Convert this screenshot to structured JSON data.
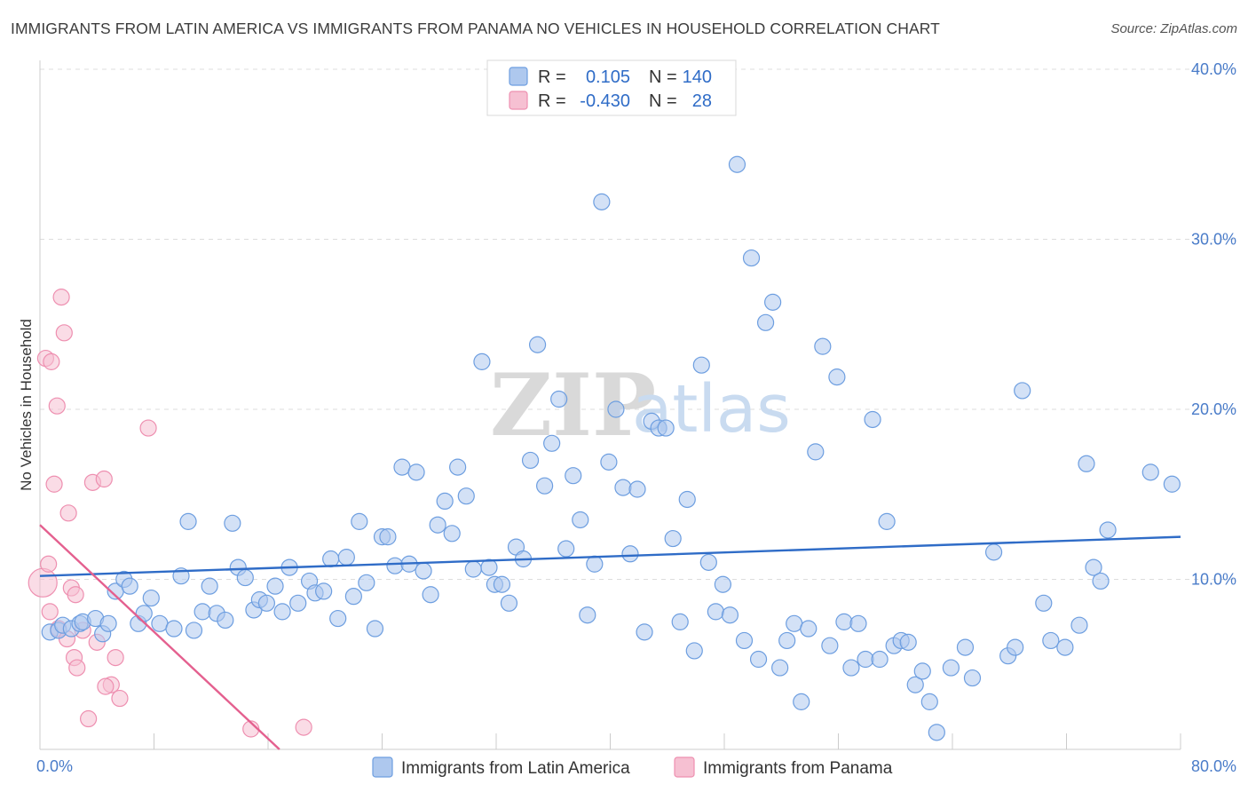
{
  "title": "IMMIGRANTS FROM LATIN AMERICA VS IMMIGRANTS FROM PANAMA NO VEHICLES IN HOUSEHOLD CORRELATION CHART",
  "source": "Source: ZipAtlas.com",
  "watermark": {
    "zip": "ZIP",
    "atlas": "atlas"
  },
  "colors": {
    "blue_fill": "#aec8ee",
    "blue_stroke": "#6d9ee0",
    "blue_line": "#2f6cc7",
    "pink_fill": "#f6c0d2",
    "pink_stroke": "#ee8fb0",
    "pink_line": "#e4608f",
    "grid": "#dddddd",
    "tick_text": "#4a7cc9"
  },
  "legend": {
    "rows": [
      {
        "r_label": "R = ",
        "r_value": "0.105",
        "n_label": "N = ",
        "n_value": "140",
        "color": "blue"
      },
      {
        "r_label": "R = ",
        "r_value": "-0.430",
        "n_label": "N = ",
        "n_value": "28",
        "color": "pink"
      }
    ]
  },
  "chart_data": {
    "type": "scatter",
    "title": "IMMIGRANTS FROM LATIN AMERICA VS IMMIGRANTS FROM PANAMA NO VEHICLES IN HOUSEHOLD CORRELATION CHART",
    "xlabel": "",
    "ylabel": "No Vehicles in Household",
    "xlim": [
      0,
      80
    ],
    "ylim": [
      0,
      40
    ],
    "x_tick_labels": [
      "0.0%",
      "80.0%"
    ],
    "y_ticks": [
      10,
      20,
      30,
      40
    ],
    "y_tick_labels": [
      "10.0%",
      "20.0%",
      "30.0%",
      "40.0%"
    ],
    "grid": true,
    "legend_placement": "top-center",
    "series": [
      {
        "name": "Immigrants from Latin America",
        "color": "blue",
        "r": 0.105,
        "n": 140,
        "trend": {
          "x": [
            0,
            80
          ],
          "y": [
            10.2,
            12.5
          ]
        },
        "points": [
          [
            0.7,
            6.9
          ],
          [
            1.3,
            7.0
          ],
          [
            1.6,
            7.3
          ],
          [
            2.2,
            7.1
          ],
          [
            2.8,
            7.4
          ],
          [
            3.0,
            7.5
          ],
          [
            3.9,
            7.7
          ],
          [
            4.4,
            6.8
          ],
          [
            4.8,
            7.4
          ],
          [
            5.3,
            9.3
          ],
          [
            5.9,
            10.0
          ],
          [
            6.3,
            9.6
          ],
          [
            6.9,
            7.4
          ],
          [
            7.3,
            8.0
          ],
          [
            7.8,
            8.9
          ],
          [
            8.4,
            7.4
          ],
          [
            9.4,
            7.1
          ],
          [
            9.9,
            10.2
          ],
          [
            10.4,
            13.4
          ],
          [
            10.8,
            7.0
          ],
          [
            11.4,
            8.1
          ],
          [
            11.9,
            9.6
          ],
          [
            12.4,
            8.0
          ],
          [
            13.0,
            7.6
          ],
          [
            13.5,
            13.3
          ],
          [
            13.9,
            10.7
          ],
          [
            14.4,
            10.1
          ],
          [
            15.0,
            8.2
          ],
          [
            15.4,
            8.8
          ],
          [
            15.9,
            8.6
          ],
          [
            16.5,
            9.6
          ],
          [
            17.0,
            8.1
          ],
          [
            17.5,
            10.7
          ],
          [
            18.1,
            8.6
          ],
          [
            18.9,
            9.9
          ],
          [
            19.3,
            9.2
          ],
          [
            19.9,
            9.3
          ],
          [
            20.4,
            11.2
          ],
          [
            20.9,
            7.7
          ],
          [
            21.5,
            11.3
          ],
          [
            22.0,
            9.0
          ],
          [
            22.4,
            13.4
          ],
          [
            22.9,
            9.8
          ],
          [
            23.5,
            7.1
          ],
          [
            24.0,
            12.5
          ],
          [
            24.4,
            12.5
          ],
          [
            24.9,
            10.8
          ],
          [
            25.4,
            16.6
          ],
          [
            25.9,
            10.9
          ],
          [
            26.4,
            16.3
          ],
          [
            26.9,
            10.5
          ],
          [
            27.4,
            9.1
          ],
          [
            27.9,
            13.2
          ],
          [
            28.4,
            14.6
          ],
          [
            28.9,
            12.7
          ],
          [
            29.3,
            16.6
          ],
          [
            29.9,
            14.9
          ],
          [
            30.4,
            10.6
          ],
          [
            31.0,
            22.8
          ],
          [
            31.5,
            10.7
          ],
          [
            31.9,
            9.7
          ],
          [
            32.4,
            9.7
          ],
          [
            32.9,
            8.6
          ],
          [
            33.4,
            11.9
          ],
          [
            33.9,
            11.2
          ],
          [
            34.4,
            17.0
          ],
          [
            34.9,
            23.8
          ],
          [
            35.4,
            15.5
          ],
          [
            35.9,
            18.0
          ],
          [
            36.4,
            20.6
          ],
          [
            36.9,
            11.8
          ],
          [
            37.4,
            16.1
          ],
          [
            37.9,
            13.5
          ],
          [
            38.4,
            7.9
          ],
          [
            38.9,
            10.9
          ],
          [
            39.4,
            32.2
          ],
          [
            39.9,
            16.9
          ],
          [
            40.4,
            20.0
          ],
          [
            40.9,
            15.4
          ],
          [
            41.4,
            11.5
          ],
          [
            41.9,
            15.3
          ],
          [
            42.4,
            6.9
          ],
          [
            42.9,
            19.3
          ],
          [
            43.4,
            18.9
          ],
          [
            43.9,
            18.9
          ],
          [
            44.4,
            12.4
          ],
          [
            44.9,
            7.5
          ],
          [
            45.4,
            14.7
          ],
          [
            45.9,
            5.8
          ],
          [
            46.4,
            22.6
          ],
          [
            46.9,
            11.0
          ],
          [
            47.4,
            8.1
          ],
          [
            47.9,
            9.7
          ],
          [
            48.4,
            7.9
          ],
          [
            48.9,
            34.4
          ],
          [
            49.4,
            6.4
          ],
          [
            49.9,
            28.9
          ],
          [
            50.4,
            5.3
          ],
          [
            50.9,
            25.1
          ],
          [
            51.4,
            26.3
          ],
          [
            51.9,
            4.8
          ],
          [
            52.4,
            6.4
          ],
          [
            52.9,
            7.4
          ],
          [
            53.4,
            2.8
          ],
          [
            53.9,
            7.1
          ],
          [
            54.4,
            17.5
          ],
          [
            54.9,
            23.7
          ],
          [
            55.4,
            6.1
          ],
          [
            55.9,
            21.9
          ],
          [
            56.4,
            7.5
          ],
          [
            56.9,
            4.8
          ],
          [
            57.4,
            7.4
          ],
          [
            57.9,
            5.3
          ],
          [
            58.4,
            19.4
          ],
          [
            58.9,
            5.3
          ],
          [
            59.4,
            13.4
          ],
          [
            59.9,
            6.1
          ],
          [
            60.4,
            6.4
          ],
          [
            60.9,
            6.3
          ],
          [
            61.4,
            3.8
          ],
          [
            61.9,
            4.6
          ],
          [
            62.4,
            2.8
          ],
          [
            62.9,
            1.0
          ],
          [
            63.9,
            4.8
          ],
          [
            64.9,
            6.0
          ],
          [
            65.4,
            4.2
          ],
          [
            66.9,
            11.6
          ],
          [
            67.9,
            5.5
          ],
          [
            68.4,
            6.0
          ],
          [
            68.9,
            21.1
          ],
          [
            70.4,
            8.6
          ],
          [
            70.9,
            6.4
          ],
          [
            71.9,
            6.0
          ],
          [
            72.9,
            7.3
          ],
          [
            73.4,
            16.8
          ],
          [
            73.9,
            10.7
          ],
          [
            74.4,
            9.9
          ],
          [
            74.9,
            12.9
          ],
          [
            77.9,
            16.3
          ],
          [
            79.4,
            15.6
          ]
        ]
      },
      {
        "name": "Immigrants from Panama",
        "color": "pink",
        "r": -0.43,
        "n": 28,
        "trend": {
          "x": [
            0,
            16.8
          ],
          "y": [
            13.2,
            0.0
          ]
        },
        "points": [
          [
            0.2,
            9.8
          ],
          [
            0.4,
            23.0
          ],
          [
            0.6,
            10.9
          ],
          [
            0.7,
            8.1
          ],
          [
            0.8,
            22.8
          ],
          [
            1.0,
            15.6
          ],
          [
            1.2,
            20.2
          ],
          [
            1.3,
            7.1
          ],
          [
            1.5,
            26.6
          ],
          [
            1.7,
            24.5
          ],
          [
            1.9,
            6.5
          ],
          [
            2.0,
            13.9
          ],
          [
            2.2,
            9.5
          ],
          [
            2.4,
            5.4
          ],
          [
            2.5,
            9.1
          ],
          [
            2.6,
            4.8
          ],
          [
            3.0,
            7.0
          ],
          [
            3.4,
            1.8
          ],
          [
            3.7,
            15.7
          ],
          [
            4.0,
            6.3
          ],
          [
            4.5,
            15.9
          ],
          [
            5.0,
            3.8
          ],
          [
            5.3,
            5.4
          ],
          [
            5.6,
            3.0
          ],
          [
            7.6,
            18.9
          ],
          [
            14.8,
            1.2
          ],
          [
            18.5,
            1.3
          ],
          [
            4.6,
            3.7
          ]
        ]
      }
    ]
  }
}
